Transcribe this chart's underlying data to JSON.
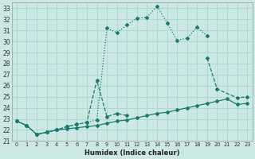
{
  "xlabel": "Humidex (Indice chaleur)",
  "bg_color": "#cce8e4",
  "grid_color": "#b0d8d2",
  "line_color": "#1a7a6e",
  "xlim": [
    -0.5,
    23.5
  ],
  "ylim": [
    21.0,
    33.5
  ],
  "xticks": [
    0,
    1,
    2,
    3,
    4,
    5,
    6,
    7,
    8,
    9,
    10,
    11,
    12,
    13,
    14,
    15,
    16,
    17,
    18,
    19,
    20,
    21,
    22,
    23
  ],
  "yticks": [
    21,
    22,
    23,
    24,
    25,
    26,
    27,
    28,
    29,
    30,
    31,
    32,
    33
  ],
  "series1_x": [
    0,
    1,
    2,
    3,
    4,
    5,
    6,
    7,
    8,
    9,
    10,
    11,
    12,
    13,
    14,
    15,
    16,
    17,
    18,
    19
  ],
  "series1_y": [
    22.8,
    22.4,
    21.6,
    21.8,
    22.0,
    22.3,
    22.5,
    22.7,
    22.9,
    31.2,
    30.8,
    31.5,
    32.1,
    32.2,
    33.2,
    31.7,
    30.1,
    30.3,
    31.3,
    30.5
  ],
  "series2_x": [
    0,
    1,
    2,
    3,
    4,
    5,
    6,
    7,
    8,
    9,
    10,
    11,
    19,
    20,
    22,
    23
  ],
  "series2_y": [
    22.8,
    22.4,
    21.6,
    21.8,
    22.0,
    22.3,
    22.5,
    22.7,
    26.5,
    23.2,
    23.5,
    23.3,
    28.5,
    25.7,
    24.9,
    25.0
  ],
  "series3_x": [
    0,
    1,
    2,
    3,
    4,
    5,
    6,
    7,
    8,
    9,
    10,
    11,
    12,
    13,
    14,
    15,
    16,
    17,
    18,
    19,
    20,
    21,
    22,
    23
  ],
  "series3_y": [
    22.8,
    22.4,
    21.6,
    21.8,
    22.0,
    22.1,
    22.2,
    22.3,
    22.4,
    22.6,
    22.8,
    22.9,
    23.1,
    23.3,
    23.5,
    23.6,
    23.8,
    24.0,
    24.2,
    24.4,
    24.6,
    24.8,
    24.3,
    24.4
  ]
}
